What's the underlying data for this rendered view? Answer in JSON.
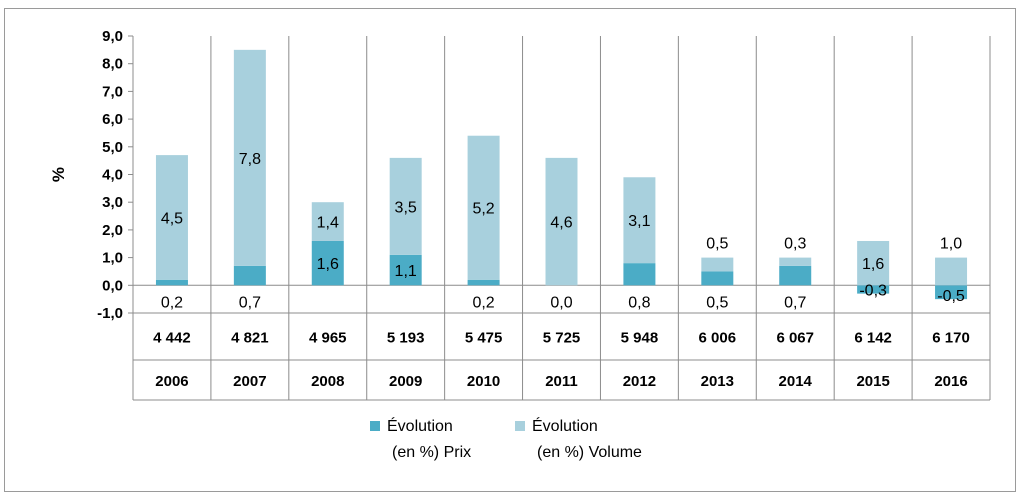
{
  "chart_data": {
    "type": "bar",
    "stacked": true,
    "ylabel": "%",
    "ylim": [
      -1.0,
      9.0
    ],
    "ytick_step": 1.0,
    "ytick_labels": [
      "-1,0",
      "0,0",
      "1,0",
      "2,0",
      "3,0",
      "4,0",
      "5,0",
      "6,0",
      "7,0",
      "8,0",
      "9,0"
    ],
    "grid": false,
    "categories": [
      "2006",
      "2007",
      "2008",
      "2009",
      "2010",
      "2011",
      "2012",
      "2013",
      "2014",
      "2015",
      "2016"
    ],
    "table_row": [
      "4 442",
      "4 821",
      "4 965",
      "5 193",
      "5 475",
      "5 725",
      "5 948",
      "6 006",
      "6 067",
      "6 142",
      "6 170"
    ],
    "series": [
      {
        "name": "Évolution (en %) Prix",
        "legend_lines": [
          "Évolution",
          "(en %) Prix"
        ],
        "color": "#4bacc6",
        "values": [
          0.2,
          0.7,
          1.6,
          1.1,
          0.2,
          0.0,
          0.8,
          0.5,
          0.7,
          -0.3,
          -0.5
        ],
        "labels": [
          "0,2",
          "0,7",
          "1,6",
          "1,1",
          "0,2",
          "0,0",
          "0,8",
          "0,5",
          "0,7",
          "-0,3",
          "-0,5"
        ]
      },
      {
        "name": "Évolution (en %) Volume",
        "legend_lines": [
          "Évolution",
          "(en %) Volume"
        ],
        "color": "#a8d0dd",
        "values": [
          4.5,
          7.8,
          1.4,
          3.5,
          5.2,
          4.6,
          3.1,
          0.5,
          0.3,
          1.6,
          1.0
        ],
        "labels": [
          "4,5",
          "7,8",
          "1,4",
          "3,5",
          "5,2",
          "4,6",
          "3,1",
          "0,5",
          "0,3",
          "1,6",
          "1,0"
        ]
      }
    ],
    "legend_position": "bottom"
  }
}
